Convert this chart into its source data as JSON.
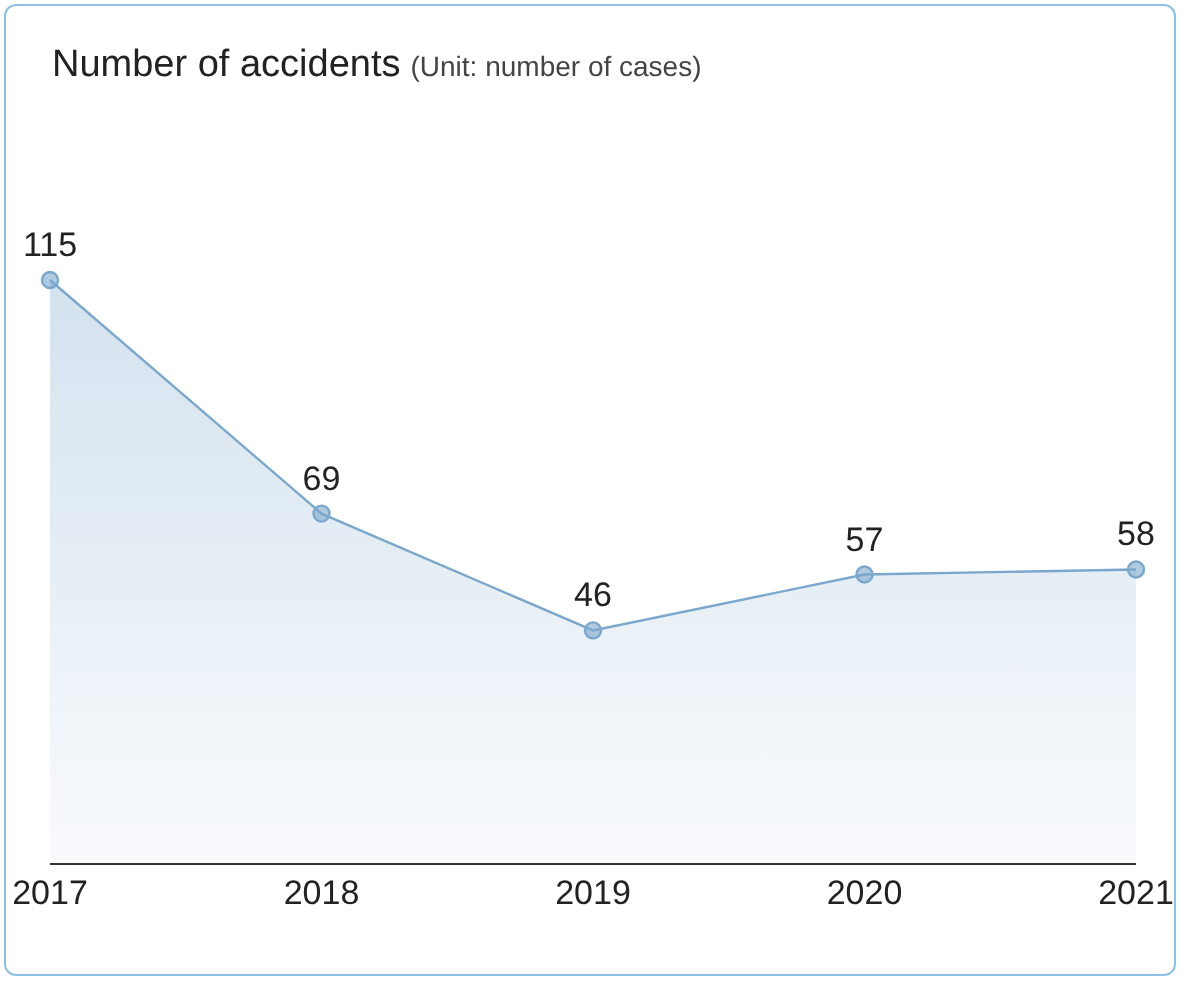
{
  "chart_data": {
    "type": "area",
    "title": "Number of accidents",
    "subtitle": "(Unit: number of cases)",
    "categories": [
      "2017",
      "2018",
      "2019",
      "2020",
      "2021"
    ],
    "values": [
      115,
      69,
      46,
      57,
      58
    ],
    "color": "#7ba7cc",
    "marker": "circle",
    "data_labels": true
  }
}
